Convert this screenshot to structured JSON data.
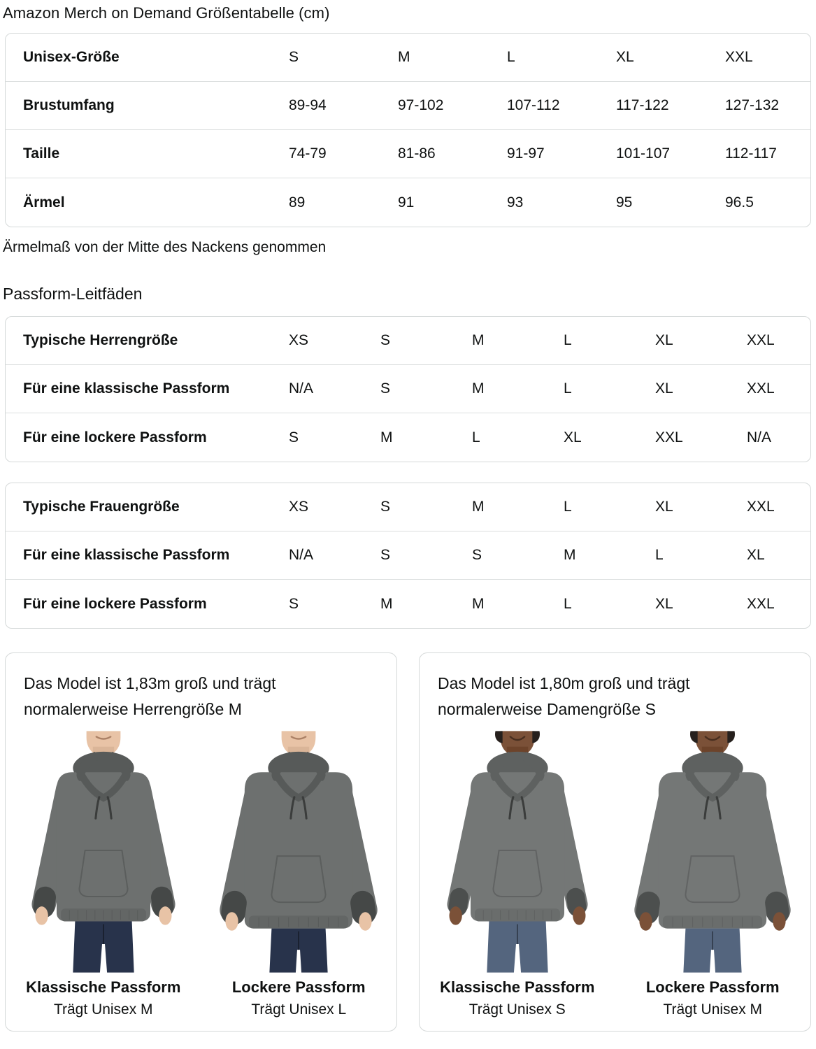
{
  "page_title": "Amazon Merch on Demand Größentabelle (cm)",
  "size_table": {
    "rows": [
      {
        "label": "Unisex-Größe",
        "values": [
          "S",
          "M",
          "L",
          "XL",
          "XXL"
        ]
      },
      {
        "label": "Brustumfang",
        "values": [
          "89-94",
          "97-102",
          "107-112",
          "117-122",
          "127-132"
        ]
      },
      {
        "label": "Taille",
        "values": [
          "74-79",
          "81-86",
          "91-97",
          "101-107",
          "112-117"
        ]
      },
      {
        "label": "Ärmel",
        "values": [
          "89",
          "91",
          "93",
          "95",
          "96.5"
        ]
      }
    ]
  },
  "sleeve_note": "Ärmelmaß von der Mitte des Nackens genommen",
  "fit_guides_heading": "Passform-Leitfäden",
  "fit_tables": [
    {
      "rows": [
        {
          "label": "Typische Herrengröße",
          "values": [
            "XS",
            "S",
            "M",
            "L",
            "XL",
            "XXL"
          ]
        },
        {
          "label": "Für eine klassische Passform",
          "values": [
            "N/A",
            "S",
            "M",
            "L",
            "XL",
            "XXL"
          ]
        },
        {
          "label": "Für eine lockere Passform",
          "values": [
            "S",
            "M",
            "L",
            "XL",
            "XXL",
            "N/A"
          ]
        }
      ]
    },
    {
      "rows": [
        {
          "label": "Typische Frauengröße",
          "values": [
            "XS",
            "S",
            "M",
            "L",
            "XL",
            "XXL"
          ]
        },
        {
          "label": "Für eine klassische Passform",
          "values": [
            "N/A",
            "S",
            "S",
            "M",
            "L",
            "XL"
          ]
        },
        {
          "label": "Für eine lockere Passform",
          "values": [
            "S",
            "M",
            "M",
            "L",
            "XL",
            "XXL"
          ]
        }
      ]
    }
  ],
  "model_cards": [
    {
      "description": "Das Model ist 1,83m groß und trägt normalerweise Herrengröße M",
      "model": "male",
      "colors": {
        "skin": "#e8c3a6",
        "hair": "#c9b294",
        "jeans": "#28334b",
        "hoodie": "#6d706f"
      },
      "figures": [
        {
          "fit_label": "Klassische Passform",
          "wears": "Trägt Unisex M",
          "loose": false
        },
        {
          "fit_label": "Lockere Passform",
          "wears": "Trägt Unisex L",
          "loose": true
        }
      ]
    },
    {
      "description": "Das Model ist 1,80m groß und trägt normalerweise Damengröße S",
      "model": "female",
      "colors": {
        "skin": "#7b5138",
        "hair": "#26201d",
        "jeans": "#54657e",
        "hoodie": "#747776"
      },
      "figures": [
        {
          "fit_label": "Klassische Passform",
          "wears": "Trägt Unisex S",
          "loose": false
        },
        {
          "fit_label": "Lockere Passform",
          "wears": "Trägt Unisex M",
          "loose": true
        }
      ]
    }
  ],
  "ui_colors": {
    "text": "#0f1111",
    "table_border": "#d5d9d9",
    "row_separator": "#dcdfdf"
  }
}
